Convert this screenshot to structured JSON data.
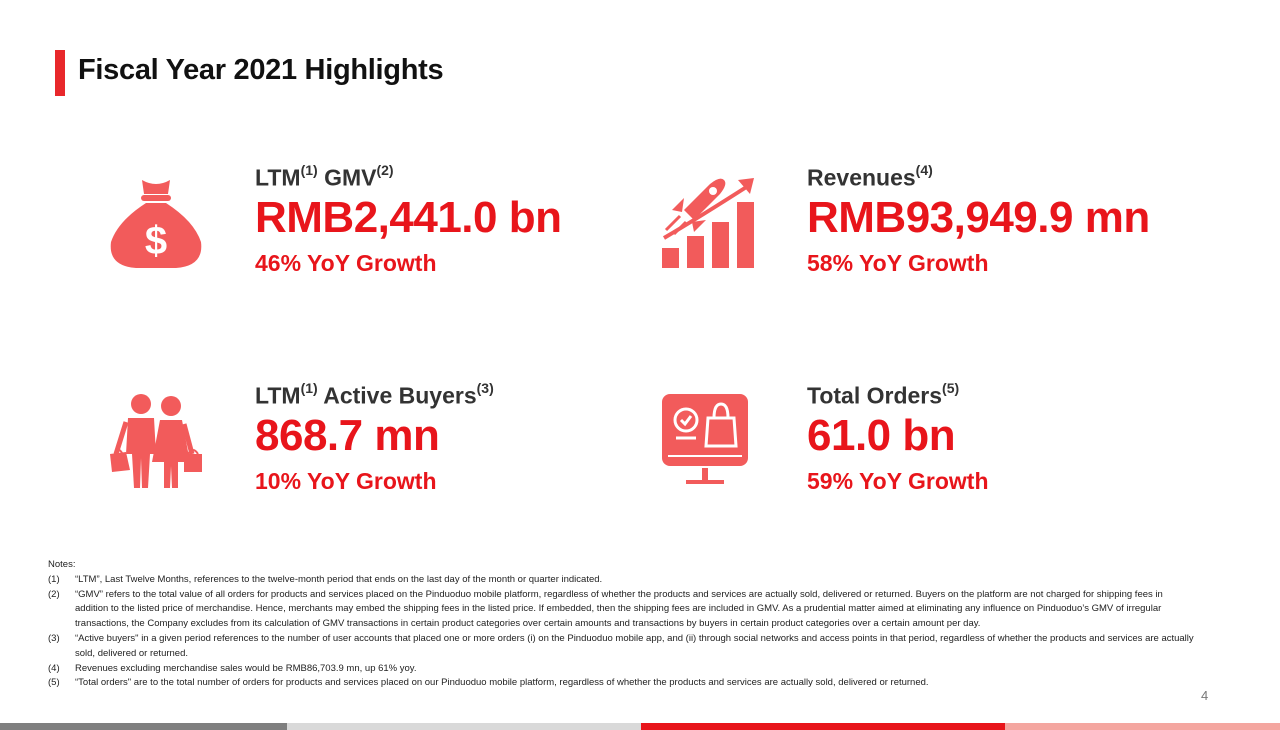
{
  "title": "Fiscal Year 2021 Highlights",
  "kpis": [
    {
      "label": "LTM",
      "sup1": "(1)",
      "label2": " GMV",
      "sup2": "(2)",
      "value": "RMB2,441.0 bn",
      "growth": "46% YoY Growth",
      "icon": "money-bag-icon"
    },
    {
      "label": "Revenues",
      "sup1": "(4)",
      "value": "RMB93,949.9 mn",
      "growth": "58% YoY Growth",
      "icon": "rocket-growth-chart-icon"
    },
    {
      "label": "LTM",
      "sup1": "(1)",
      "label2": " Active Buyers",
      "sup2": "(3)",
      "value": "868.7 mn",
      "growth": "10% YoY Growth",
      "icon": "shoppers-icon"
    },
    {
      "label": "Total Orders",
      "sup1": "(5)",
      "value": "61.0 bn",
      "growth": "59% YoY Growth",
      "icon": "online-shopping-monitor-icon"
    }
  ],
  "notes": {
    "heading": "Notes:",
    "items": [
      {
        "num": "(1)",
        "text": "“LTM”, Last Twelve Months, references to the twelve-month period that ends on the last day of the month or quarter indicated."
      },
      {
        "num": "(2)",
        "text": "“GMV” refers to the total value of all orders for products and services placed on the Pinduoduo mobile platform, regardless of whether the products and services are actually sold, delivered or returned. Buyers on the platform are not charged for shipping fees in addition to the listed price of merchandise. Hence, merchants may embed the shipping fees in the listed price. If embedded, then the shipping fees are included in GMV. As a prudential matter aimed at eliminating any influence on Pinduoduo’s GMV of irregular transactions, the Company excludes from its calculation of GMV transactions in certain product categories over certain amounts and transactions by buyers in certain product categories over a certain amount per day."
      },
      {
        "num": "(3)",
        "text": "“Active buyers\" in a given period references to the number of user accounts that placed one or more orders (i) on the Pinduoduo mobile app, and (ii) through social networks and access points in that period, regardless of whether the products and services are actually sold, delivered or returned."
      },
      {
        "num": "(4)",
        "text": "Revenues excluding merchandise sales would be RMB86,703.9 mn, up 61% yoy."
      },
      {
        "num": "(5)",
        "text": "“Total orders\" are to the total number of orders for products and services placed on our Pinduoduo mobile platform, regardless of whether the products and services are actually sold, delivered or returned."
      }
    ]
  },
  "page_number": "4",
  "colors": {
    "accent": "#e8151b",
    "icon": "#f25b5b",
    "footer_gray": "#7f7f7f",
    "footer_light": "#d9d9d9",
    "footer_red": "#e8151b",
    "footer_pink": "#f4a6a0"
  }
}
